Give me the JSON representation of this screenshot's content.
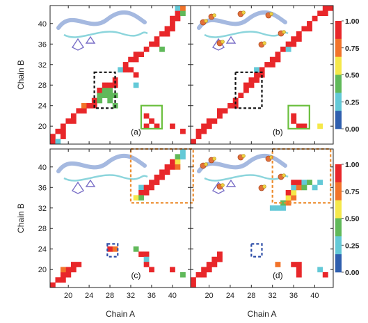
{
  "chart_data": {
    "type": "heatmap",
    "x_axis_label": "Chain A",
    "y_axis_label": "Chain B",
    "x_ticks": [
      20,
      24,
      28,
      32,
      36,
      40
    ],
    "x_ticks_bottom_right": [
      20,
      24,
      28,
      32,
      36,
      40
    ],
    "y_ticks": [
      20,
      24,
      28,
      32,
      36,
      40
    ],
    "y_ticks_bottom": [
      20,
      24,
      28,
      32,
      36,
      40
    ],
    "x_range": [
      16.5,
      43.5
    ],
    "y_range": [
      16.5,
      43.5
    ],
    "colorbar": {
      "range": [
        0,
        1
      ],
      "tick_labels": [
        "1.00",
        "0.75",
        "0.50",
        "0.25",
        "0.00"
      ],
      "colors": [
        "#e8272a",
        "#f2732a",
        "#f5e84a",
        "#60b95a",
        "#63c9d7",
        "#2f5fae"
      ]
    },
    "panels": [
      {
        "label": "(a)",
        "cells": [
          {
            "a": 17,
            "b": 17,
            "v": 1.0
          },
          {
            "a": 17,
            "b": 18,
            "v": 0.9
          },
          {
            "a": 18,
            "b": 17,
            "v": 0.3
          },
          {
            "a": 18,
            "b": 19,
            "v": 1.0
          },
          {
            "a": 19,
            "b": 18,
            "v": 1.0
          },
          {
            "a": 19,
            "b": 19,
            "v": 1.0
          },
          {
            "a": 19,
            "b": 20,
            "v": 1.0
          },
          {
            "a": 20,
            "b": 21,
            "v": 1.0
          },
          {
            "a": 21,
            "b": 21,
            "v": 1.0
          },
          {
            "a": 21,
            "b": 22,
            "v": 1.0
          },
          {
            "a": 22,
            "b": 23,
            "v": 1.0
          },
          {
            "a": 23,
            "b": 23,
            "v": 1.0
          },
          {
            "a": 23,
            "b": 24,
            "v": 0.8
          },
          {
            "a": 24,
            "b": 24,
            "v": 1.0
          },
          {
            "a": 25,
            "b": 24,
            "v": 1.0
          },
          {
            "a": 25,
            "b": 25,
            "v": 1.0
          },
          {
            "a": 26,
            "b": 25,
            "v": 0.4
          },
          {
            "a": 26,
            "b": 26,
            "v": 0.4
          },
          {
            "a": 26,
            "b": 27,
            "v": 1.0
          },
          {
            "a": 27,
            "b": 26,
            "v": 0.4
          },
          {
            "a": 27,
            "b": 27,
            "v": 0.4
          },
          {
            "a": 27,
            "b": 28,
            "v": 1.0
          },
          {
            "a": 28,
            "b": 25,
            "v": 0.4
          },
          {
            "a": 28,
            "b": 26,
            "v": 0.4
          },
          {
            "a": 28,
            "b": 27,
            "v": 0.4
          },
          {
            "a": 28,
            "b": 28,
            "v": 1.0
          },
          {
            "a": 29,
            "b": 24,
            "v": 0.5
          },
          {
            "a": 29,
            "b": 26,
            "v": 0.4
          },
          {
            "a": 29,
            "b": 28,
            "v": 1.0
          },
          {
            "a": 29,
            "b": 29,
            "v": 1.0
          },
          {
            "a": 30,
            "b": 31,
            "v": 0.3
          },
          {
            "a": 31,
            "b": 31,
            "v": 1.0
          },
          {
            "a": 31,
            "b": 32,
            "v": 1.0
          },
          {
            "a": 32,
            "b": 31,
            "v": 1.0
          },
          {
            "a": 32,
            "b": 33,
            "v": 1.0
          },
          {
            "a": 33,
            "b": 33,
            "v": 1.0
          },
          {
            "a": 33,
            "b": 30,
            "v": 0.95
          },
          {
            "a": 33,
            "b": 28,
            "v": 0.2
          },
          {
            "a": 33,
            "b": 34,
            "v": 1.0
          },
          {
            "a": 34,
            "b": 34,
            "v": 1.0
          },
          {
            "a": 35,
            "b": 35,
            "v": 1.0
          },
          {
            "a": 35,
            "b": 22,
            "v": 1.0
          },
          {
            "a": 35,
            "b": 20,
            "v": 1.0
          },
          {
            "a": 36,
            "b": 36,
            "v": 1.0
          },
          {
            "a": 36,
            "b": 21,
            "v": 1.0
          },
          {
            "a": 37,
            "b": 20,
            "v": 1.0
          },
          {
            "a": 37,
            "b": 36,
            "v": 1.0
          },
          {
            "a": 37,
            "b": 37,
            "v": 1.0
          },
          {
            "a": 38,
            "b": 38,
            "v": 1.0
          },
          {
            "a": 38,
            "b": 35,
            "v": 0.5
          },
          {
            "a": 39,
            "b": 38,
            "v": 1.0
          },
          {
            "a": 39,
            "b": 39,
            "v": 1.0
          },
          {
            "a": 40,
            "b": 39,
            "v": 1.0
          },
          {
            "a": 40,
            "b": 40,
            "v": 1.0
          },
          {
            "a": 40,
            "b": 41,
            "v": 1.0
          },
          {
            "a": 41,
            "b": 41,
            "v": 1.0
          },
          {
            "a": 41,
            "b": 42,
            "v": 1.0
          },
          {
            "a": 41,
            "b": 43,
            "v": 0.3
          },
          {
            "a": 42,
            "b": 42,
            "v": 0.4
          },
          {
            "a": 42,
            "b": 43,
            "v": 0.85
          },
          {
            "a": 40,
            "b": 20,
            "v": 1.0
          },
          {
            "a": 42,
            "b": 19,
            "v": 1.0
          }
        ],
        "boxes": [
          {
            "color": "black",
            "a0": 25,
            "a1": 29,
            "b0": 23.5,
            "b1": 30.5
          },
          {
            "color": "green",
            "a0": 34,
            "a1": 38,
            "b0": 19.5,
            "b1": 24
          }
        ]
      },
      {
        "label": "(b)",
        "cells": [
          {
            "a": 17,
            "b": 17,
            "v": 1.0
          },
          {
            "a": 18,
            "b": 18,
            "v": 1.0
          },
          {
            "a": 18,
            "b": 19,
            "v": 1.0
          },
          {
            "a": 19,
            "b": 19,
            "v": 1.0
          },
          {
            "a": 19,
            "b": 20,
            "v": 1.0
          },
          {
            "a": 20,
            "b": 20,
            "v": 1.0
          },
          {
            "a": 20,
            "b": 21,
            "v": 1.0
          },
          {
            "a": 21,
            "b": 21,
            "v": 1.0
          },
          {
            "a": 22,
            "b": 22,
            "v": 1.0
          },
          {
            "a": 22,
            "b": 23,
            "v": 1.0
          },
          {
            "a": 23,
            "b": 23,
            "v": 1.0
          },
          {
            "a": 24,
            "b": 24,
            "v": 1.0
          },
          {
            "a": 25,
            "b": 24,
            "v": 1.0
          },
          {
            "a": 25,
            "b": 25,
            "v": 1.0
          },
          {
            "a": 26,
            "b": 26,
            "v": 1.0
          },
          {
            "a": 27,
            "b": 27,
            "v": 1.0
          },
          {
            "a": 27,
            "b": 28,
            "v": 1.0
          },
          {
            "a": 28,
            "b": 28,
            "v": 1.0
          },
          {
            "a": 28,
            "b": 29,
            "v": 1.0
          },
          {
            "a": 29,
            "b": 29,
            "v": 1.0
          },
          {
            "a": 29,
            "b": 30,
            "v": 1.0
          },
          {
            "a": 30,
            "b": 30,
            "v": 1.0
          },
          {
            "a": 30,
            "b": 31,
            "v": 1.0
          },
          {
            "a": 29,
            "b": 31,
            "v": 0.2
          },
          {
            "a": 31,
            "b": 32,
            "v": 1.0
          },
          {
            "a": 32,
            "b": 32,
            "v": 1.0
          },
          {
            "a": 32,
            "b": 33,
            "v": 1.0
          },
          {
            "a": 33,
            "b": 33,
            "v": 1.0
          },
          {
            "a": 33,
            "b": 34,
            "v": 1.0
          },
          {
            "a": 34,
            "b": 35,
            "v": 1.0
          },
          {
            "a": 35,
            "b": 35,
            "v": 0.3
          },
          {
            "a": 35,
            "b": 36,
            "v": 1.0
          },
          {
            "a": 36,
            "b": 36,
            "v": 1.0
          },
          {
            "a": 36,
            "b": 37,
            "v": 1.0
          },
          {
            "a": 37,
            "b": 37,
            "v": 1.0
          },
          {
            "a": 37,
            "b": 38,
            "v": 1.0
          },
          {
            "a": 38,
            "b": 39,
            "v": 1.0
          },
          {
            "a": 39,
            "b": 39,
            "v": 1.0
          },
          {
            "a": 39,
            "b": 40,
            "v": 1.0
          },
          {
            "a": 40,
            "b": 41,
            "v": 1.0
          },
          {
            "a": 41,
            "b": 42,
            "v": 1.0
          },
          {
            "a": 42,
            "b": 42,
            "v": 1.0
          },
          {
            "a": 42,
            "b": 43,
            "v": 1.0
          },
          {
            "a": 43,
            "b": 43,
            "v": 1.0
          },
          {
            "a": 36,
            "b": 22,
            "v": 1.0
          },
          {
            "a": 36,
            "b": 21,
            "v": 1.0
          },
          {
            "a": 37,
            "b": 20,
            "v": 1.0
          },
          {
            "a": 38,
            "b": 20,
            "v": 1.0
          },
          {
            "a": 41,
            "b": 20,
            "v": 0.7
          }
        ],
        "boxes": [
          {
            "color": "black",
            "a0": 25,
            "a1": 30,
            "b0": 23.5,
            "b1": 30.5
          },
          {
            "color": "green",
            "a0": 35,
            "a1": 39,
            "b0": 19.5,
            "b1": 24
          }
        ]
      },
      {
        "label": "(c)",
        "cells": [
          {
            "a": 17,
            "b": 17,
            "v": 1.0
          },
          {
            "a": 18,
            "b": 18,
            "v": 1.0
          },
          {
            "a": 19,
            "b": 18,
            "v": 1.0
          },
          {
            "a": 19,
            "b": 19,
            "v": 1.0
          },
          {
            "a": 20,
            "b": 19,
            "v": 1.0
          },
          {
            "a": 20,
            "b": 20,
            "v": 1.0
          },
          {
            "a": 21,
            "b": 20,
            "v": 1.0
          },
          {
            "a": 21,
            "b": 21,
            "v": 1.0
          },
          {
            "a": 22,
            "b": 21,
            "v": 1.0
          },
          {
            "a": 19,
            "b": 20,
            "v": 0.75
          },
          {
            "a": 28,
            "b": 24,
            "v": 0.9
          },
          {
            "a": 29,
            "b": 24,
            "v": 0.8
          },
          {
            "a": 33,
            "b": 24,
            "v": 0.4
          },
          {
            "a": 35,
            "b": 23,
            "v": 0.9
          },
          {
            "a": 35,
            "b": 22,
            "v": 0.3
          },
          {
            "a": 34,
            "b": 23,
            "v": 1.0
          },
          {
            "a": 35,
            "b": 21,
            "v": 1.0
          },
          {
            "a": 36,
            "b": 20,
            "v": 1.0
          },
          {
            "a": 40,
            "b": 20,
            "v": 1.0
          },
          {
            "a": 42,
            "b": 19,
            "v": 0.4
          },
          {
            "a": 34,
            "b": 36,
            "v": 0.2
          },
          {
            "a": 34,
            "b": 35,
            "v": 1.0
          },
          {
            "a": 35,
            "b": 35,
            "v": 1.0
          },
          {
            "a": 35,
            "b": 36,
            "v": 1.0
          },
          {
            "a": 36,
            "b": 36,
            "v": 1.0
          },
          {
            "a": 36,
            "b": 37,
            "v": 1.0
          },
          {
            "a": 37,
            "b": 37,
            "v": 1.0
          },
          {
            "a": 37,
            "b": 38,
            "v": 1.0
          },
          {
            "a": 38,
            "b": 38,
            "v": 1.0
          },
          {
            "a": 38,
            "b": 39,
            "v": 1.0
          },
          {
            "a": 39,
            "b": 39,
            "v": 1.0
          },
          {
            "a": 39,
            "b": 40,
            "v": 1.0
          },
          {
            "a": 40,
            "b": 40,
            "v": 1.0
          },
          {
            "a": 40,
            "b": 41,
            "v": 0.9
          },
          {
            "a": 41,
            "b": 41,
            "v": 0.7
          },
          {
            "a": 41,
            "b": 42,
            "v": 0.45
          },
          {
            "a": 42,
            "b": 42,
            "v": 0.2
          },
          {
            "a": 42,
            "b": 43,
            "v": 0.3
          },
          {
            "a": 33,
            "b": 34,
            "v": 0.7
          },
          {
            "a": 34,
            "b": 34,
            "v": 0.5
          },
          {
            "a": 41,
            "b": 40,
            "v": 0.8
          }
        ],
        "boxes": [
          {
            "color": "orange",
            "a0": 32,
            "a1": 44,
            "b0": 33,
            "b1": 43.5
          },
          {
            "color": "blue",
            "a0": 27.5,
            "a1": 29.5,
            "b0": 22.5,
            "b1": 25
          }
        ]
      },
      {
        "label": "(d)",
        "cells": [
          {
            "a": 17,
            "b": 17,
            "v": 1.0
          },
          {
            "a": 17,
            "b": 18,
            "v": 1.0
          },
          {
            "a": 18,
            "b": 19,
            "v": 1.0
          },
          {
            "a": 19,
            "b": 19,
            "v": 1.0
          },
          {
            "a": 19,
            "b": 20,
            "v": 1.0
          },
          {
            "a": 20,
            "b": 20,
            "v": 1.0
          },
          {
            "a": 20,
            "b": 21,
            "v": 1.0
          },
          {
            "a": 21,
            "b": 21,
            "v": 1.0
          },
          {
            "a": 21,
            "b": 22,
            "v": 1.0
          },
          {
            "a": 22,
            "b": 22,
            "v": 1.0
          },
          {
            "a": 22,
            "b": 23,
            "v": 1.0
          },
          {
            "a": 33,
            "b": 21,
            "v": 0.85
          },
          {
            "a": 36,
            "b": 21,
            "v": 1.0
          },
          {
            "a": 37,
            "b": 21,
            "v": 1.0
          },
          {
            "a": 37,
            "b": 20,
            "v": 1.0
          },
          {
            "a": 37,
            "b": 19,
            "v": 1.0
          },
          {
            "a": 41,
            "b": 20,
            "v": 0.3
          },
          {
            "a": 42,
            "b": 19,
            "v": 1.0
          },
          {
            "a": 32,
            "b": 32,
            "v": 0.2
          },
          {
            "a": 33,
            "b": 32,
            "v": 0.2
          },
          {
            "a": 34,
            "b": 32,
            "v": 0.2
          },
          {
            "a": 34,
            "b": 33,
            "v": 0.5
          },
          {
            "a": 35,
            "b": 33,
            "v": 0.8
          },
          {
            "a": 35,
            "b": 34,
            "v": 0.7
          },
          {
            "a": 35,
            "b": 35,
            "v": 1.0
          },
          {
            "a": 36,
            "b": 34,
            "v": 0.85
          },
          {
            "a": 36,
            "b": 35,
            "v": 0.7
          },
          {
            "a": 36,
            "b": 36,
            "v": 0.2
          },
          {
            "a": 37,
            "b": 36,
            "v": 0.75
          },
          {
            "a": 37,
            "b": 37,
            "v": 1.0
          },
          {
            "a": 38,
            "b": 37,
            "v": 0.3
          },
          {
            "a": 38,
            "b": 36,
            "v": 0.4
          },
          {
            "a": 39,
            "b": 37,
            "v": 0.4
          },
          {
            "a": 40,
            "b": 36,
            "v": 0.2
          },
          {
            "a": 41,
            "b": 37,
            "v": 0.3
          },
          {
            "a": 36,
            "b": 37,
            "v": 0.9
          }
        ],
        "boxes": [
          {
            "color": "orange",
            "a0": 32,
            "a1": 43,
            "b0": 33,
            "b1": 43.5
          },
          {
            "color": "blue",
            "a0": 28,
            "a1": 30,
            "b0": 22.5,
            "b1": 25
          }
        ]
      }
    ]
  }
}
